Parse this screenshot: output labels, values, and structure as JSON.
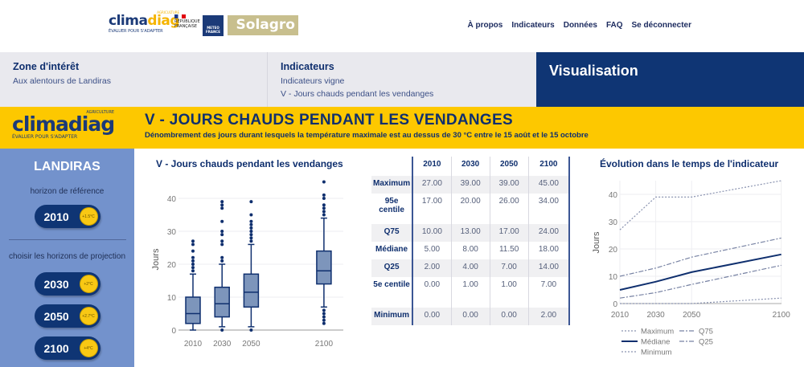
{
  "header": {
    "logo": "climadiag",
    "logo_tag": "AGRICULTURE",
    "logo_sub": "ÉVALUER POUR S'ADAPTER",
    "rf": "RÉPUBLIQUE FRANÇAISE",
    "mf": "METEO FRANCE",
    "solagro": "Solagro",
    "nav": [
      "À propos",
      "Indicateurs",
      "Données",
      "FAQ",
      "Se déconnecter"
    ]
  },
  "crumbs": {
    "zone_title": "Zone d'intérêt",
    "zone_value": "Aux alentours de Landiras",
    "ind_title": "Indicateurs",
    "ind_group": "Indicateurs vigne",
    "ind_value": "V - Jours chauds pendant les vendanges",
    "viz": "Visualisation"
  },
  "band": {
    "title": "V - JOURS CHAUDS PENDANT LES VENDANGES",
    "subtitle": "Dénombrement des jours durant lesquels la température maximale est au dessus de 30 °C entre le 15 août et le 15 octobre"
  },
  "sidebar": {
    "place": "LANDIRAS",
    "ref_label": "horizon de référence",
    "proj_label": "choisir les horizons de projection",
    "horizons": [
      {
        "year": "2010",
        "warming": "+1.5°C"
      },
      {
        "year": "2030",
        "warming": "+2°C"
      },
      {
        "year": "2050",
        "warming": "+2.7°C"
      },
      {
        "year": "2100",
        "warming": "+4°C"
      }
    ]
  },
  "table": {
    "headers": [
      "2010",
      "2030",
      "2050",
      "2100"
    ],
    "rows": [
      {
        "label": "Maximum",
        "values": [
          "27.00",
          "39.00",
          "39.00",
          "45.00"
        ]
      },
      {
        "label": "95e centile",
        "values": [
          "17.00",
          "20.00",
          "26.00",
          "34.00"
        ]
      },
      {
        "label": "Q75",
        "values": [
          "10.00",
          "13.00",
          "17.00",
          "24.00"
        ]
      },
      {
        "label": "Médiane",
        "values": [
          "5.00",
          "8.00",
          "11.50",
          "18.00"
        ]
      },
      {
        "label": "Q25",
        "values": [
          "2.00",
          "4.00",
          "7.00",
          "14.00"
        ]
      },
      {
        "label": "5e centile",
        "values": [
          "0.00",
          "1.00",
          "1.00",
          "7.00"
        ]
      },
      {
        "label": "Minimum",
        "values": [
          "0.00",
          "0.00",
          "0.00",
          "2.00"
        ]
      }
    ]
  },
  "chart_data": [
    {
      "type": "box",
      "title": "V - Jours chauds pendant les vendanges",
      "ylabel": "Jours",
      "ylim": [
        0,
        45
      ],
      "yticks": [
        0,
        10,
        20,
        30,
        40
      ],
      "categories": [
        "2010",
        "2030",
        "2050",
        "2100"
      ],
      "boxes": [
        {
          "x": 2010,
          "whislo": 0,
          "q1": 2,
          "med": 5,
          "q3": 10,
          "whishi": 17,
          "outliers": [
            18,
            19,
            20,
            21,
            22,
            24,
            26,
            27
          ]
        },
        {
          "x": 2030,
          "whislo": 1,
          "q1": 4,
          "med": 8,
          "q3": 13,
          "whishi": 20,
          "outliers": [
            0,
            21,
            22,
            26,
            27,
            29,
            30,
            33,
            37,
            38,
            39
          ]
        },
        {
          "x": 2050,
          "whislo": 1,
          "q1": 7,
          "med": 11.5,
          "q3": 17,
          "whishi": 26,
          "outliers": [
            0,
            27,
            28,
            29,
            30,
            31,
            32,
            33,
            35,
            39
          ]
        },
        {
          "x": 2100,
          "whislo": 7,
          "q1": 14,
          "med": 18,
          "q3": 24,
          "whishi": 34,
          "outliers": [
            2,
            3,
            4,
            5,
            6,
            35,
            36,
            37,
            38,
            40,
            41,
            45
          ]
        }
      ],
      "color": "#0f2f6e",
      "fill": "#7d95bb"
    },
    {
      "type": "line",
      "title": "Évolution dans le temps de l'indicateur",
      "ylabel": "Jours",
      "x": [
        2010,
        2030,
        2050,
        2100
      ],
      "xticks": [
        "2010",
        "2030",
        "2050",
        "2100"
      ],
      "yticks": [
        0,
        10,
        20,
        30,
        40
      ],
      "ylim": [
        0,
        45
      ],
      "legend": "bottom",
      "series": [
        {
          "name": "Maximum",
          "values": [
            27,
            39,
            39,
            45
          ],
          "dash": "2,2",
          "color": "#8a93b0"
        },
        {
          "name": "Q75",
          "values": [
            10,
            13,
            17,
            24
          ],
          "dash": "6,2,2,2",
          "color": "#7782a3"
        },
        {
          "name": "Médiane",
          "values": [
            5,
            8,
            11.5,
            18
          ],
          "dash": "",
          "color": "#0f2f6e"
        },
        {
          "name": "Q25",
          "values": [
            2,
            4,
            7,
            14
          ],
          "dash": "6,2,2,2",
          "color": "#7782a3"
        },
        {
          "name": "Minimum",
          "values": [
            0,
            0,
            0,
            2
          ],
          "dash": "2,2",
          "color": "#8a93b0"
        }
      ]
    }
  ]
}
